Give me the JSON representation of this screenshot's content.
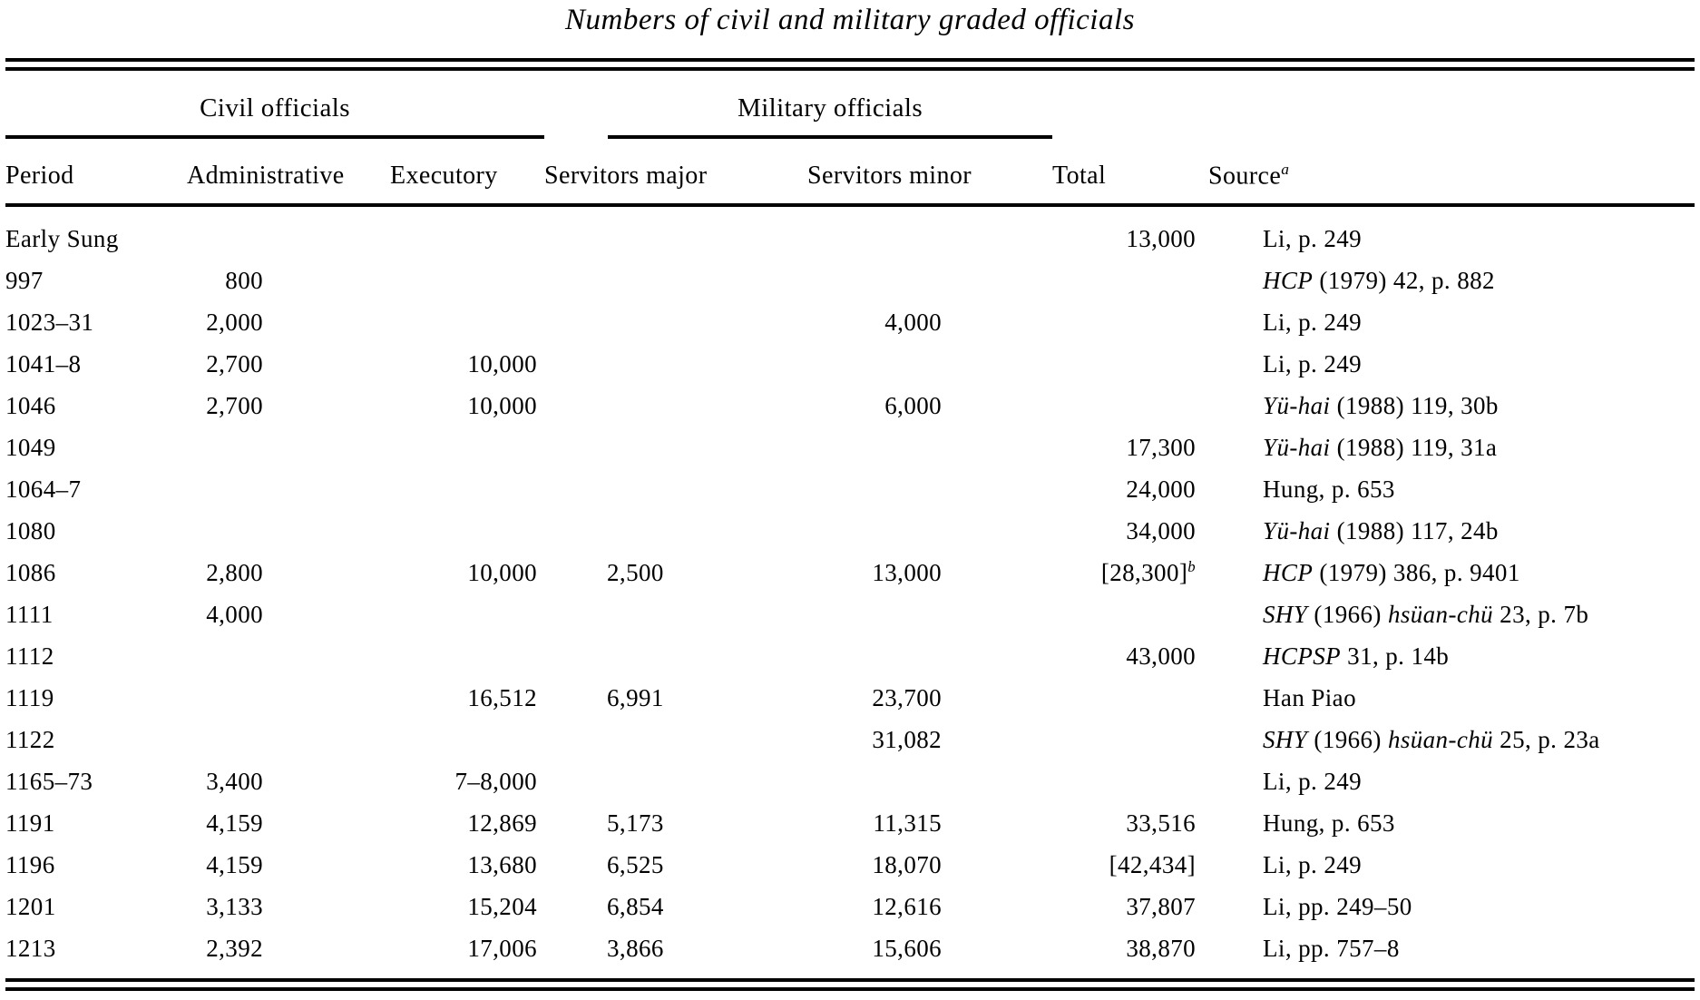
{
  "title": "Numbers of civil and military graded officials",
  "colors": {
    "ink": "#000000",
    "paper": "#ffffff"
  },
  "table": {
    "spanners": {
      "civil": "Civil officials",
      "military": "Military officials"
    },
    "columns": {
      "period": "Period",
      "administrative": "Administrative",
      "executory": "Executory",
      "servitors_major": "Servitors major",
      "servitors_minor": "Servitors minor",
      "total": "Total",
      "source": "Source",
      "source_note_mark": "a"
    },
    "rows": [
      {
        "period": "Early Sung",
        "administrative": "",
        "executory": "",
        "servitors_major": "",
        "servitors_minor": "",
        "total": "13,000",
        "total_note": "",
        "source": [
          {
            "t": "Li, p. 249",
            "i": false
          }
        ]
      },
      {
        "period": "997",
        "administrative": "800",
        "executory": "",
        "servitors_major": "",
        "servitors_minor": "",
        "total": "",
        "total_note": "",
        "source": [
          {
            "t": "HCP",
            "i": true
          },
          {
            "t": " (1979) 42, p. 882",
            "i": false
          }
        ]
      },
      {
        "period": "1023–31",
        "administrative": "2,000",
        "executory": "",
        "servitors_major": "",
        "servitors_minor": "4,000",
        "total": "",
        "total_note": "",
        "source": [
          {
            "t": "Li, p. 249",
            "i": false
          }
        ]
      },
      {
        "period": "1041–8",
        "administrative": "2,700",
        "executory": "10,000",
        "servitors_major": "",
        "servitors_minor": "",
        "total": "",
        "total_note": "",
        "source": [
          {
            "t": "Li, p. 249",
            "i": false
          }
        ]
      },
      {
        "period": "1046",
        "administrative": "2,700",
        "executory": "10,000",
        "servitors_major": "",
        "servitors_minor": "6,000",
        "total": "",
        "total_note": "",
        "source": [
          {
            "t": "Yü-hai",
            "i": true
          },
          {
            "t": " (1988) 119, 30b",
            "i": false
          }
        ]
      },
      {
        "period": "1049",
        "administrative": "",
        "executory": "",
        "servitors_major": "",
        "servitors_minor": "",
        "total": "17,300",
        "total_note": "",
        "source": [
          {
            "t": "Yü-hai",
            "i": true
          },
          {
            "t": " (1988) 119, 31a",
            "i": false
          }
        ]
      },
      {
        "period": "1064–7",
        "administrative": "",
        "executory": "",
        "servitors_major": "",
        "servitors_minor": "",
        "total": "24,000",
        "total_note": "",
        "source": [
          {
            "t": "Hung, p. 653",
            "i": false
          }
        ]
      },
      {
        "period": "1080",
        "administrative": "",
        "executory": "",
        "servitors_major": "",
        "servitors_minor": "",
        "total": "34,000",
        "total_note": "",
        "source": [
          {
            "t": "Yü-hai",
            "i": true
          },
          {
            "t": " (1988) 117, 24b",
            "i": false
          }
        ]
      },
      {
        "period": "1086",
        "administrative": "2,800",
        "executory": "10,000",
        "servitors_major": "2,500",
        "servitors_minor": "13,000",
        "total": "[28,300]",
        "total_note": "b",
        "source": [
          {
            "t": "HCP",
            "i": true
          },
          {
            "t": " (1979) 386, p. 9401",
            "i": false
          }
        ]
      },
      {
        "period": "1111",
        "administrative": "4,000",
        "executory": "",
        "servitors_major": "",
        "servitors_minor": "",
        "total": "",
        "total_note": "",
        "source": [
          {
            "t": "SHY",
            "i": true
          },
          {
            "t": " (1966) ",
            "i": false
          },
          {
            "t": "hsüan-chü",
            "i": true
          },
          {
            "t": " 23, p. 7b",
            "i": false
          }
        ]
      },
      {
        "period": "1112",
        "administrative": "",
        "executory": "",
        "servitors_major": "",
        "servitors_minor": "",
        "total": "43,000",
        "total_note": "",
        "source": [
          {
            "t": "HCPSP",
            "i": true
          },
          {
            "t": " 31, p. 14b",
            "i": false
          }
        ]
      },
      {
        "period": "1119",
        "administrative": "",
        "executory": "16,512",
        "servitors_major": "6,991",
        "servitors_minor": "23,700",
        "total": "",
        "total_note": "",
        "source": [
          {
            "t": "Han Piao",
            "i": false
          }
        ]
      },
      {
        "period": "1122",
        "administrative": "",
        "executory": "",
        "servitors_major": "",
        "servitors_minor": "31,082",
        "total": "",
        "total_note": "",
        "source": [
          {
            "t": "SHY",
            "i": true
          },
          {
            "t": " (1966) ",
            "i": false
          },
          {
            "t": "hsüan-chü",
            "i": true
          },
          {
            "t": " 25, p. 23a",
            "i": false
          }
        ]
      },
      {
        "period": "1165–73",
        "administrative": "3,400",
        "executory": "7–8,000",
        "servitors_major": "",
        "servitors_minor": "",
        "total": "",
        "total_note": "",
        "source": [
          {
            "t": "Li, p. 249",
            "i": false
          }
        ]
      },
      {
        "period": "1191",
        "administrative": "4,159",
        "executory": "12,869",
        "servitors_major": "5,173",
        "servitors_minor": "11,315",
        "total": "33,516",
        "total_note": "",
        "source": [
          {
            "t": "Hung, p. 653",
            "i": false
          }
        ]
      },
      {
        "period": "1196",
        "administrative": "4,159",
        "executory": "13,680",
        "servitors_major": "6,525",
        "servitors_minor": "18,070",
        "total": "[42,434]",
        "total_note": "",
        "source": [
          {
            "t": "Li, p. 249",
            "i": false
          }
        ]
      },
      {
        "period": "1201",
        "administrative": "3,133",
        "executory": "15,204",
        "servitors_major": "6,854",
        "servitors_minor": "12,616",
        "total": "37,807",
        "total_note": "",
        "source": [
          {
            "t": "Li, pp. 249–50",
            "i": false
          }
        ]
      },
      {
        "period": "1213",
        "administrative": "2,392",
        "executory": "17,006",
        "servitors_major": "3,866",
        "servitors_minor": "15,606",
        "total": "38,870",
        "total_note": "",
        "source": [
          {
            "t": "Li, pp. 757–8",
            "i": false
          }
        ]
      }
    ]
  }
}
